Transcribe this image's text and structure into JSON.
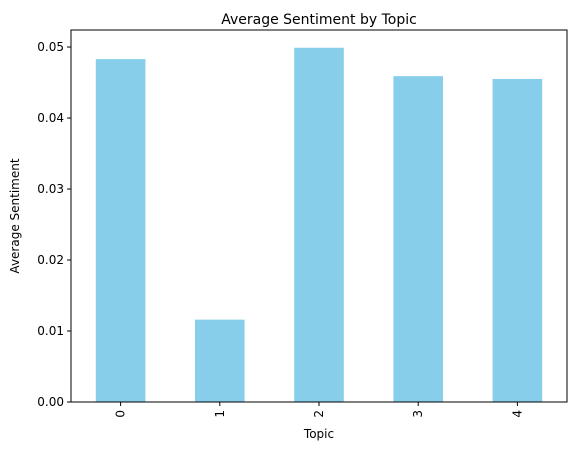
{
  "chart_data": {
    "type": "bar",
    "title": "Average Sentiment by Topic",
    "xlabel": "Topic",
    "ylabel": "Average Sentiment",
    "categories": [
      "0",
      "1",
      "2",
      "3",
      "4"
    ],
    "values": [
      0.0483,
      0.0116,
      0.0499,
      0.0459,
      0.0455
    ],
    "ylim": [
      0,
      0.0524
    ],
    "yticks": [
      0.0,
      0.01,
      0.02,
      0.03,
      0.04,
      0.05
    ],
    "ytick_labels": [
      "0.00",
      "0.01",
      "0.02",
      "0.03",
      "0.04",
      "0.05"
    ],
    "xtick_rotation": 90,
    "bar_color": "#87CEEB",
    "grid": false,
    "legend": "none"
  }
}
